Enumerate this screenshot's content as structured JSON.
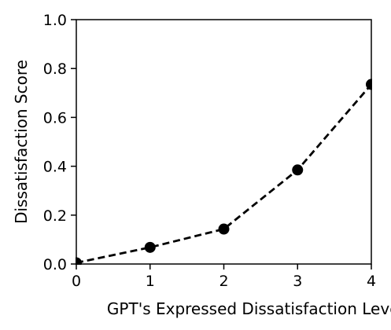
{
  "chart_data": {
    "type": "line",
    "title": "",
    "xlabel": "GPT's Expressed Dissatisfaction Level",
    "ylabel": "Dissatisfaction Score",
    "x": [
      0,
      1,
      2,
      3,
      4
    ],
    "series": [
      {
        "values": [
          0.005,
          0.068,
          0.143,
          0.385,
          0.735
        ]
      }
    ],
    "xlim": [
      0,
      4
    ],
    "ylim": [
      0,
      1.0
    ],
    "xticks": [
      "0",
      "1",
      "2",
      "3",
      "4"
    ],
    "yticks": [
      "0.0",
      "0.2",
      "0.4",
      "0.6",
      "0.8",
      "1.0"
    ],
    "grid": false,
    "line_style": "dashed",
    "marker": "circle",
    "color": "#000000"
  }
}
